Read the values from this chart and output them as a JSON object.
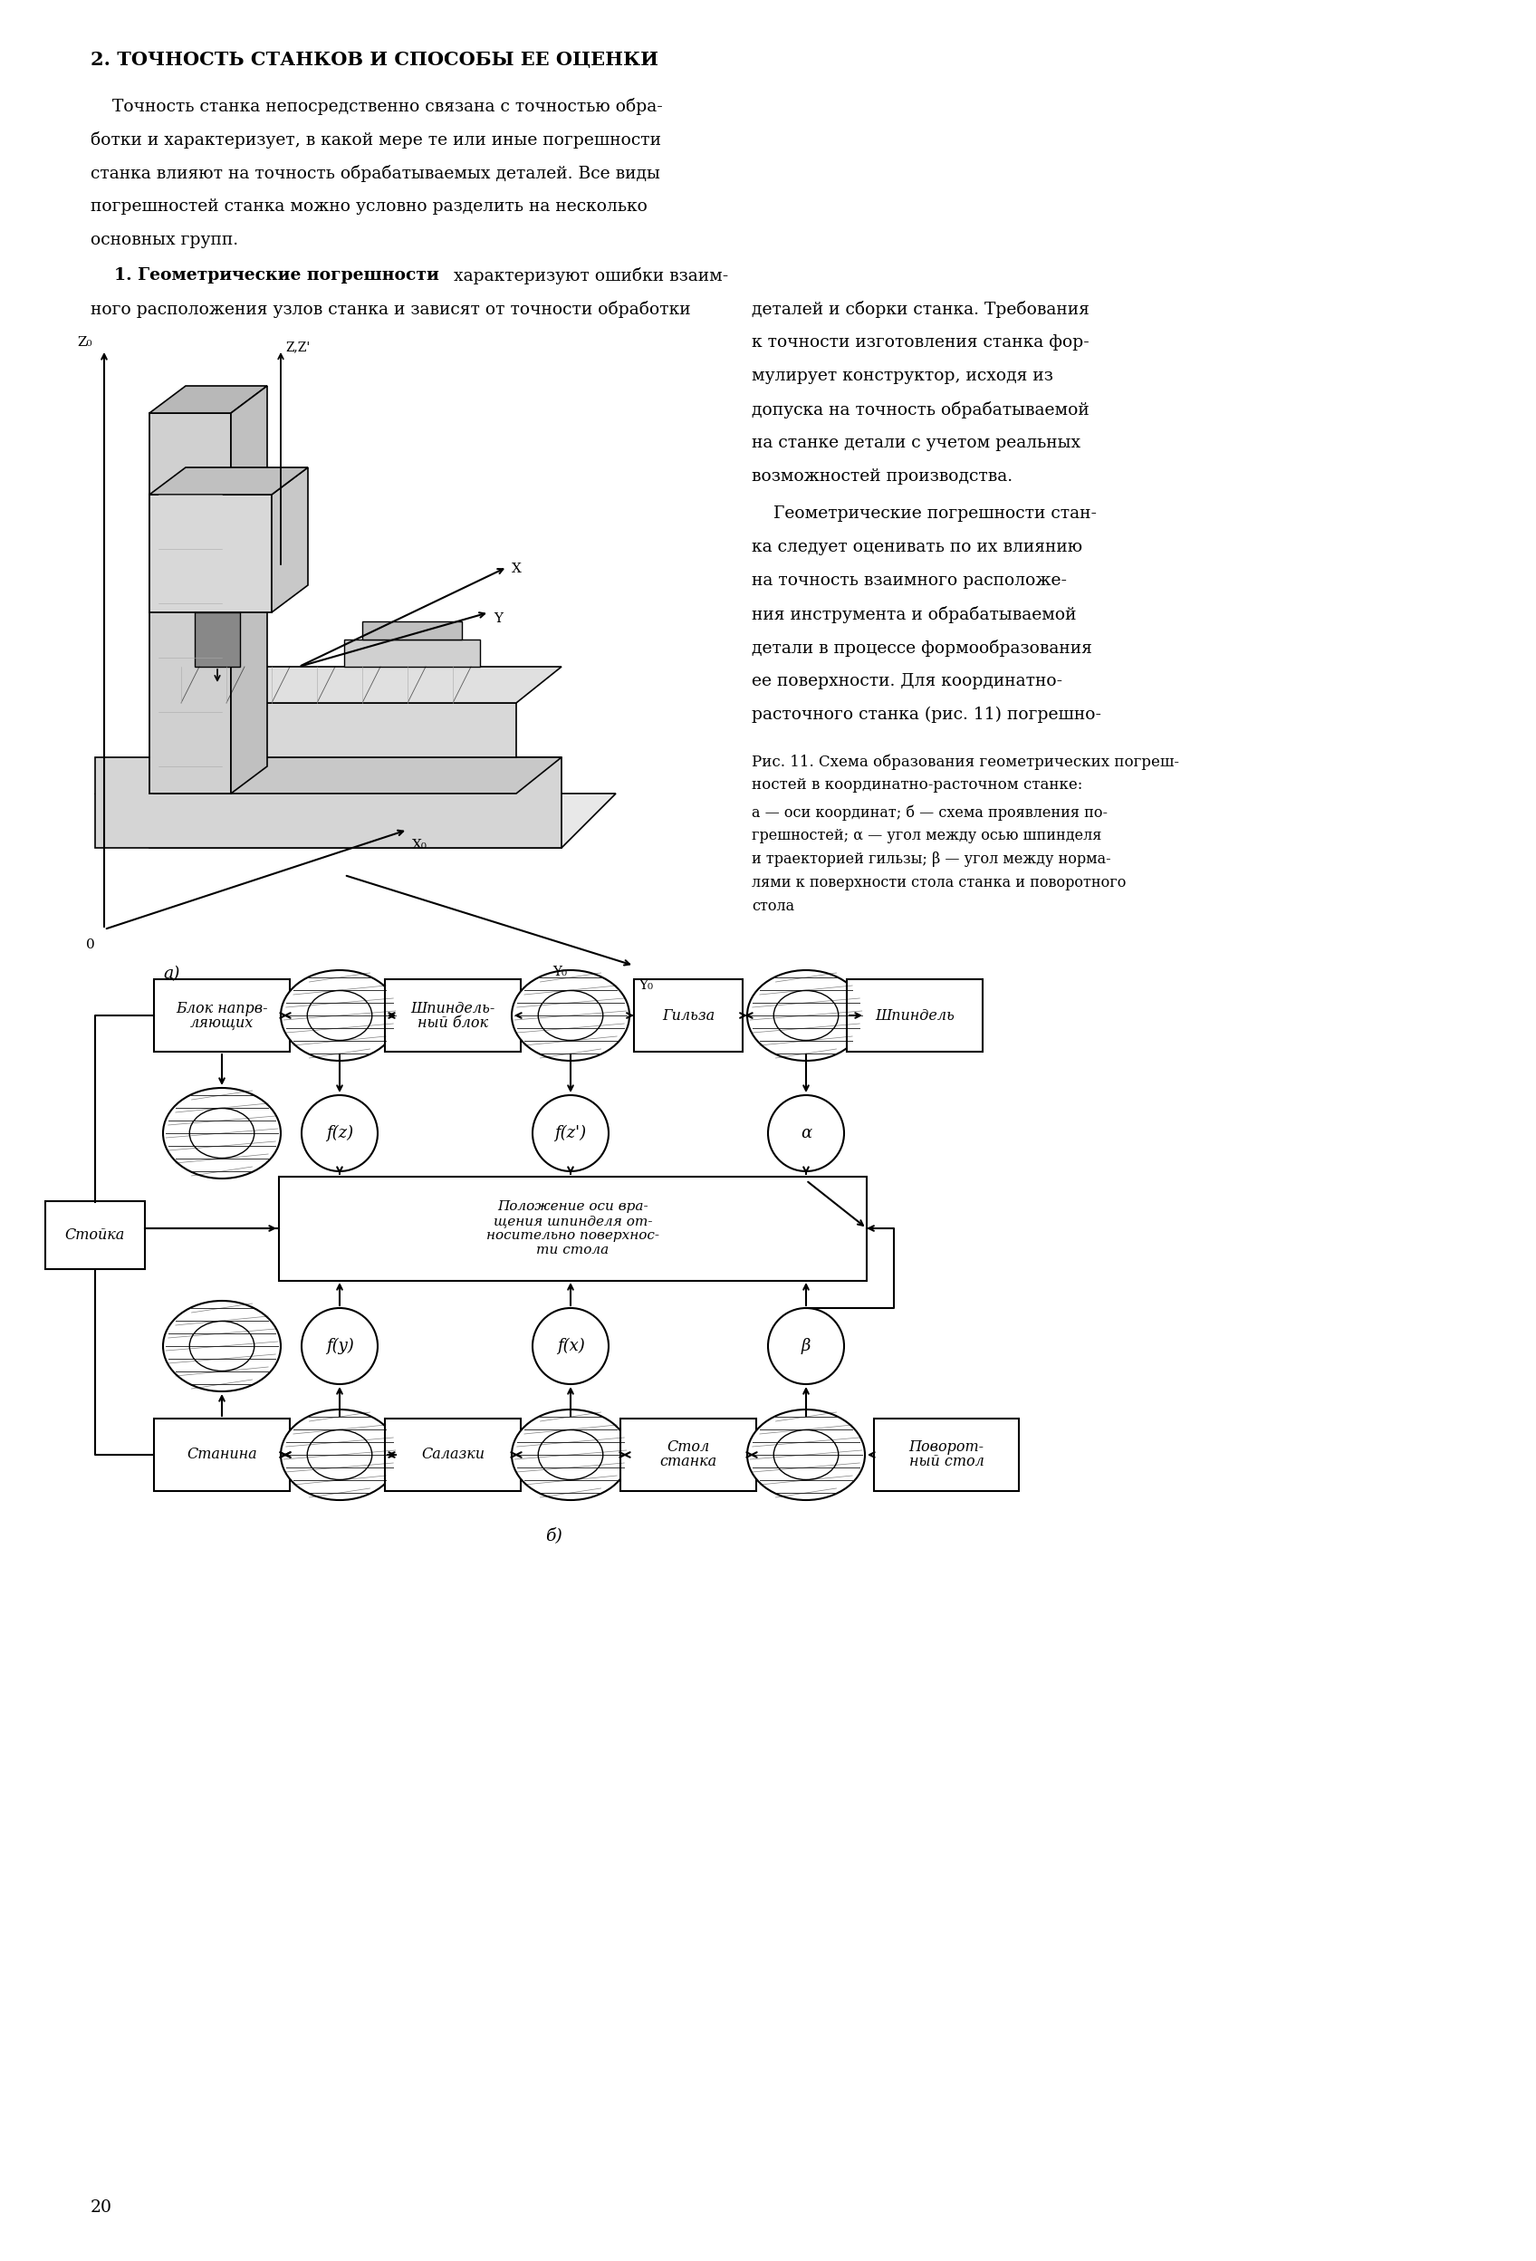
{
  "title": "2. ТОЧНОСТЬ СТАНКОВ И СПОСОБЫ ЕЕ ОЦЕНКИ",
  "para1_lines": [
    "    Точность станка непосредственно связана с точностью обра-",
    "ботки и характеризует, в какой мере те или иные погрешности",
    "станка влияют на точность обрабатываемых деталей. Все виды",
    "погрешностей станка можно условно разделить на несколько",
    "основных групп."
  ],
  "para2_bold": "    1. Геометрические погрешности",
  "para2_cont": " характеризуют ошибки взаим-",
  "para2_line2": "ного расположения узлов станка и зависят от точности обработки",
  "right_col_lines1": [
    "деталей и сборки станка. Требования",
    "к точности изготовления станка фор-",
    "мулирует конструктор, исходя из",
    "допуска на точность обрабатываемой",
    "на станке детали с учетом реальных",
    "возможностей производства."
  ],
  "right_col_lines2": [
    "    Геометрические погрешности стан-",
    "ка следует оценивать по их влиянию",
    "на точность взаимного расположе-",
    "ния инструмента и обрабатываемой",
    "детали в процессе формообразования",
    "ее поверхности. Для координатно-",
    "расточного станка (рис. 11) погрешно-"
  ],
  "cap_line1": "Рис. 11. Схема образования геометрических погреш-",
  "cap_line2": "ностей в координатно-расточном станке:",
  "cap_line3": "а — оси координат; б — схема проявления по-",
  "cap_line4": "грешностей; α — угол между осью шпинделя",
  "cap_line5": "и траекторией гильзы; β — угол между норма-",
  "cap_line6": "лями к поверхности стола станка и поворотного",
  "cap_line7": "стола",
  "page_num": "20",
  "bg_color": "#ffffff",
  "mid_box_lines": [
    "Положение оси вра-",
    "щения шпинделя от-",
    "носительно поверхнос-",
    "ти стола"
  ],
  "top_row_boxes": [
    "Блок напрв-\nляющих",
    "Шпиндель-\nный блок",
    "Гильза",
    "Шпиндель"
  ],
  "bot_row_boxes": [
    "Станина",
    "Салазки",
    "Стол\nстанка",
    "Поворот-\nный стол"
  ],
  "top_labels": [
    "f(z)",
    "f(z')",
    "α"
  ],
  "bot_labels": [
    "f(y)",
    "f(x)",
    "β"
  ],
  "stojka_label": "Стойка",
  "label_a": "а)",
  "label_b": "б)",
  "y0_label": "Y₀",
  "z0_label": "Z₀",
  "zz_label": "Z,Z'",
  "x_label": "X",
  "y_label": "Y",
  "x0_label": "X₀",
  "o_label": "0"
}
